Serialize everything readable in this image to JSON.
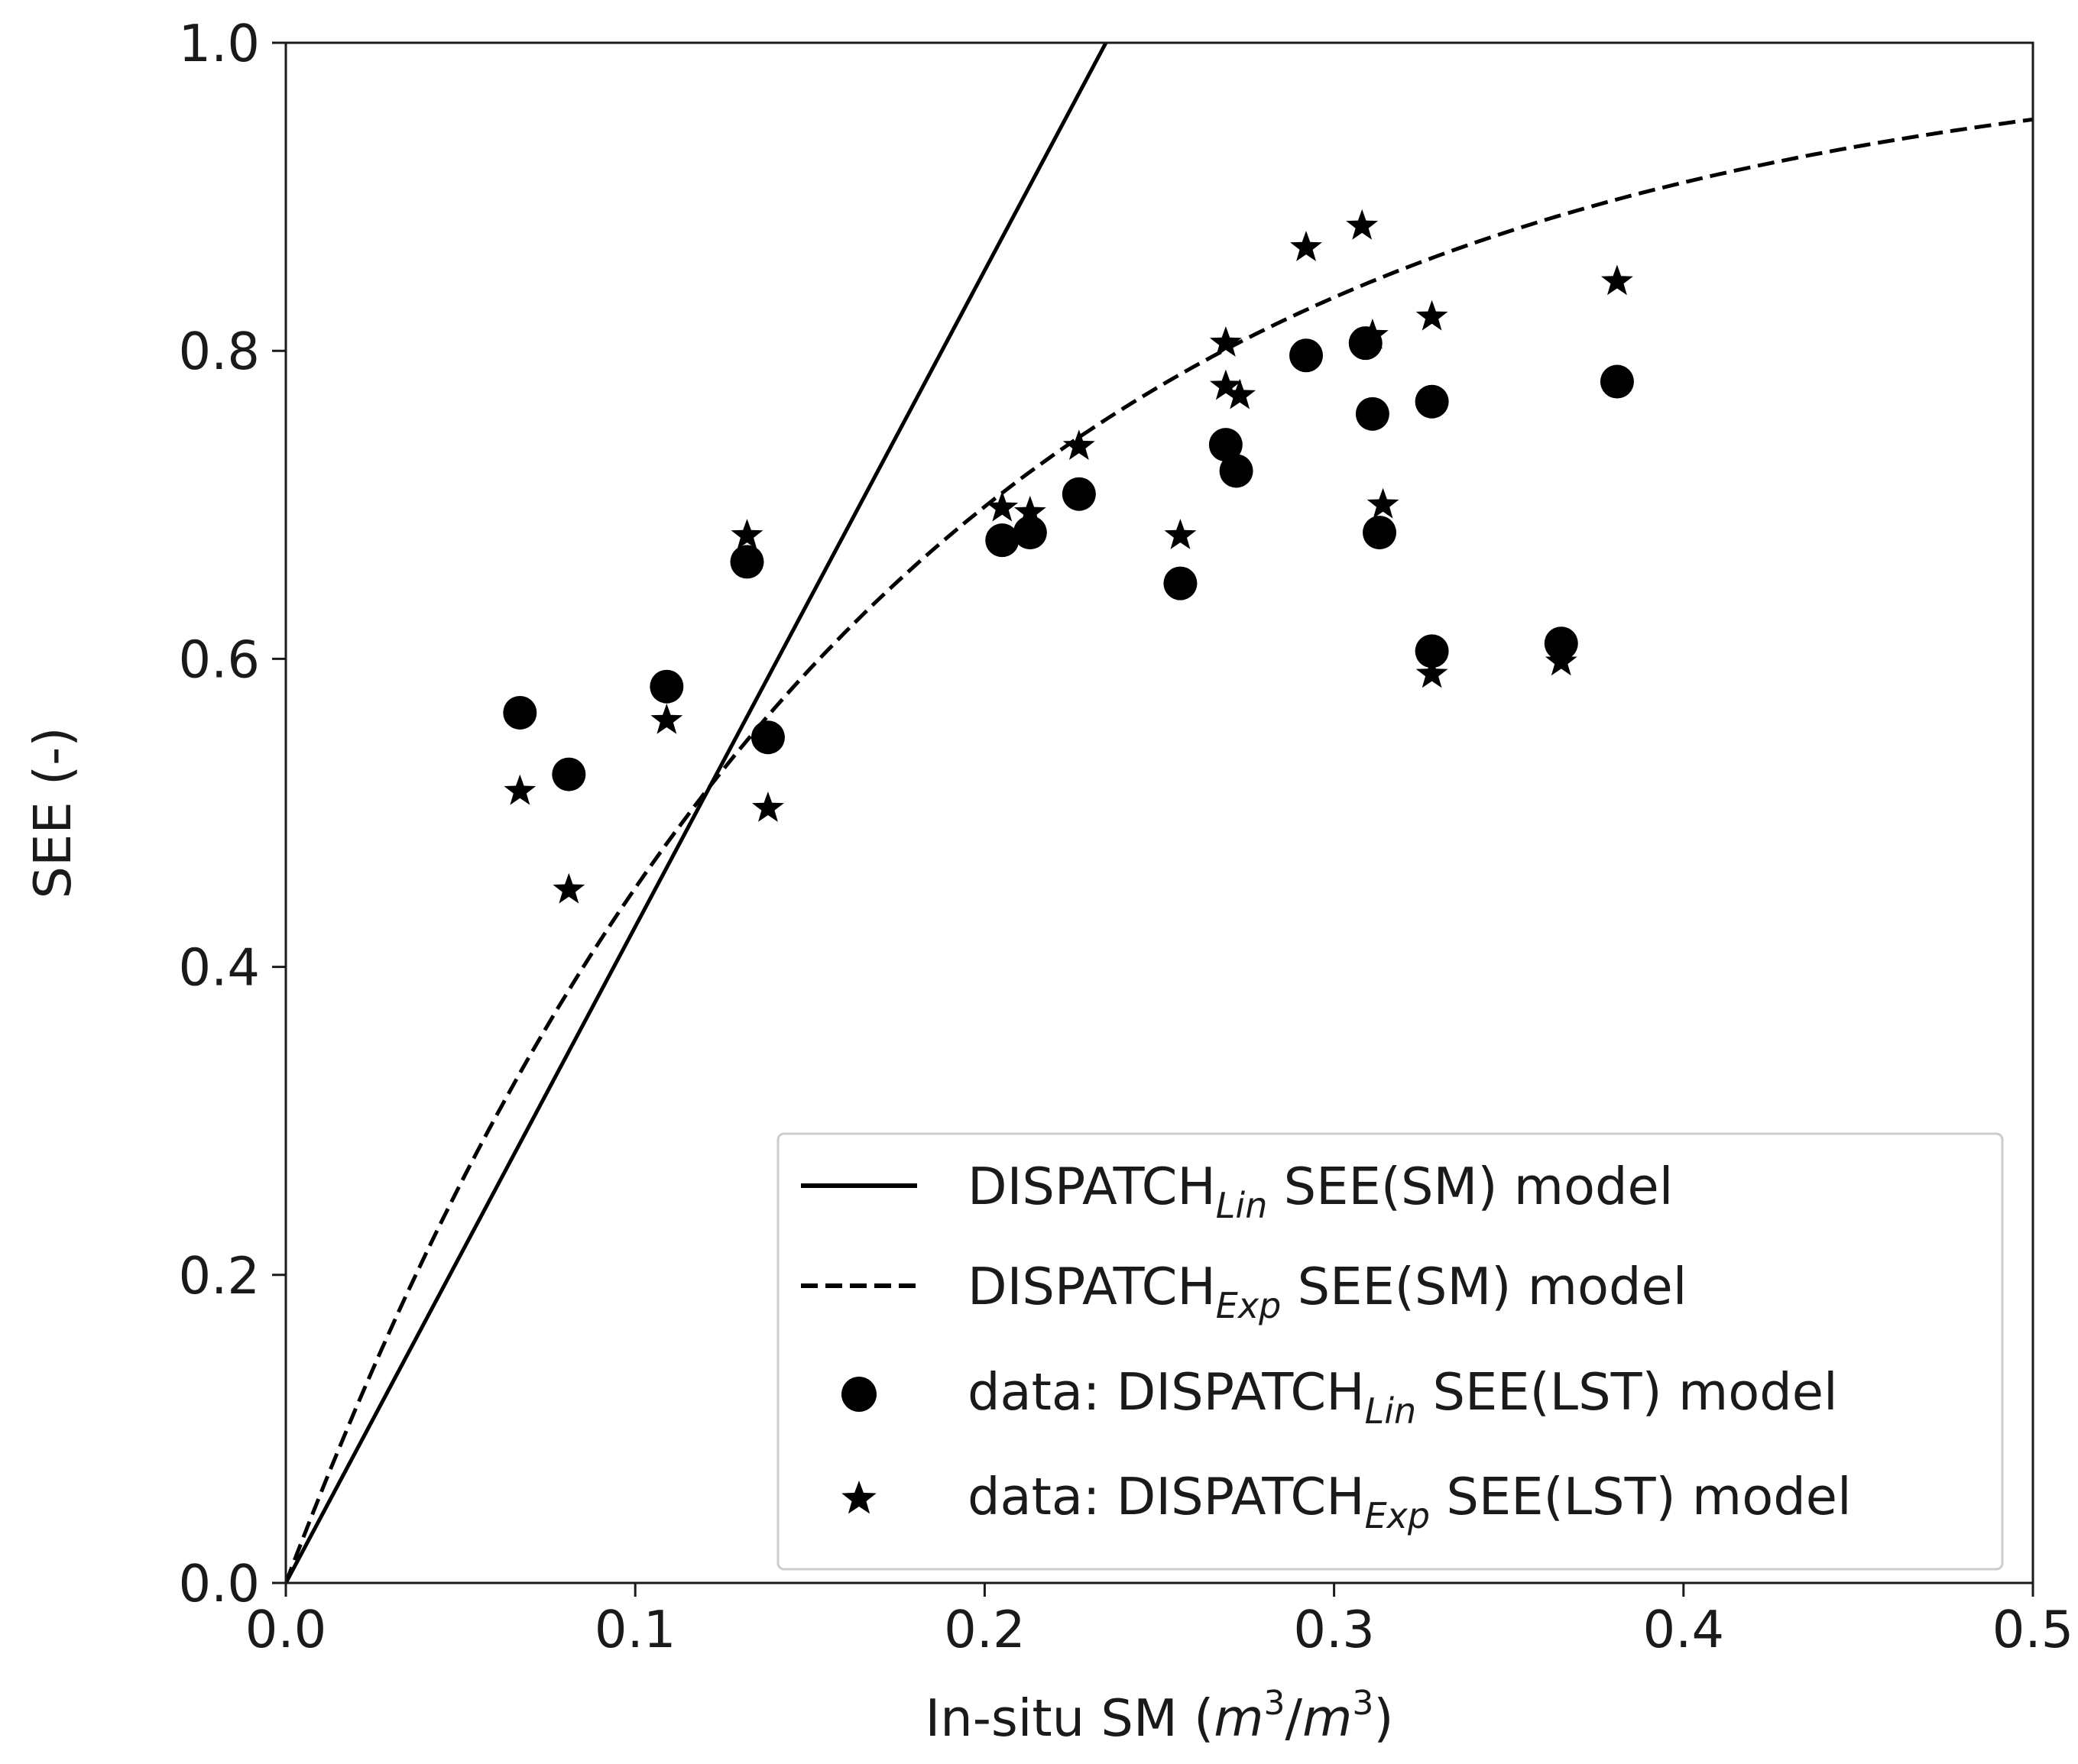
{
  "chart_data": {
    "type": "scatter",
    "xlabel_text": "In-situ SM (",
    "xlabel_math": {
      "base": "m",
      "exp": "3",
      "sep": "/",
      "base2": "m",
      "exp2": "3"
    },
    "xlabel_close": ")",
    "ylabel": "SEE (-)",
    "xlim": [
      0.0,
      0.5
    ],
    "ylim": [
      0.0,
      1.0
    ],
    "xticks": [
      "0.0",
      "0.1",
      "0.2",
      "0.3",
      "0.4",
      "0.5"
    ],
    "yticks": [
      "0.0",
      "0.2",
      "0.4",
      "0.6",
      "0.8",
      "1.0"
    ],
    "grid": false,
    "legend_position": "lower-right",
    "legend": [
      {
        "prefix": "DISPATCH",
        "sub": "Lin",
        "suffix": " SEE(SM) model",
        "marker": "solid-line"
      },
      {
        "prefix": "DISPATCH",
        "sub": "Exp",
        "suffix": " SEE(SM) model",
        "marker": "dashed-line"
      },
      {
        "prefix": "data: DISPATCH",
        "sub": "Lin",
        "suffix": " SEE(LST) model",
        "marker": "circle"
      },
      {
        "prefix": "data: DISPATCH",
        "sub": "Exp",
        "suffix": " SEE(LST) model",
        "marker": "star"
      }
    ],
    "lines": [
      {
        "name": "DISPATCH_Lin SEE(SM) model",
        "style": "solid",
        "slope": 4.26,
        "x": [
          0.0,
          0.2347
        ],
        "y": [
          0.0,
          1.0
        ]
      },
      {
        "name": "DISPATCH_Exp SEE(SM) model",
        "style": "dashed",
        "equation": "y = 1 - exp(-6 x)",
        "x": [
          0.0,
          0.5
        ]
      }
    ],
    "series": [
      {
        "name": "data: DISPATCH_Lin SEE(LST) model",
        "marker": "circle",
        "x": [
          0.067,
          0.081,
          0.109,
          0.132,
          0.138,
          0.205,
          0.213,
          0.227,
          0.256,
          0.269,
          0.272,
          0.292,
          0.309,
          0.311,
          0.313,
          0.328,
          0.328,
          0.365,
          0.381
        ],
        "y": [
          0.565,
          0.525,
          0.582,
          0.663,
          0.549,
          0.677,
          0.682,
          0.707,
          0.649,
          0.739,
          0.722,
          0.797,
          0.805,
          0.759,
          0.682,
          0.767,
          0.605,
          0.61,
          0.78
        ]
      },
      {
        "name": "data: DISPATCH_Exp SEE(LST) model",
        "marker": "star",
        "x": [
          0.067,
          0.081,
          0.109,
          0.132,
          0.138,
          0.205,
          0.213,
          0.227,
          0.256,
          0.269,
          0.269,
          0.273,
          0.292,
          0.308,
          0.311,
          0.314,
          0.328,
          0.328,
          0.365,
          0.381
        ],
        "y": [
          0.514,
          0.45,
          0.56,
          0.68,
          0.503,
          0.698,
          0.695,
          0.738,
          0.68,
          0.805,
          0.777,
          0.771,
          0.867,
          0.881,
          0.81,
          0.7,
          0.822,
          0.59,
          0.598,
          0.845
        ]
      }
    ]
  }
}
